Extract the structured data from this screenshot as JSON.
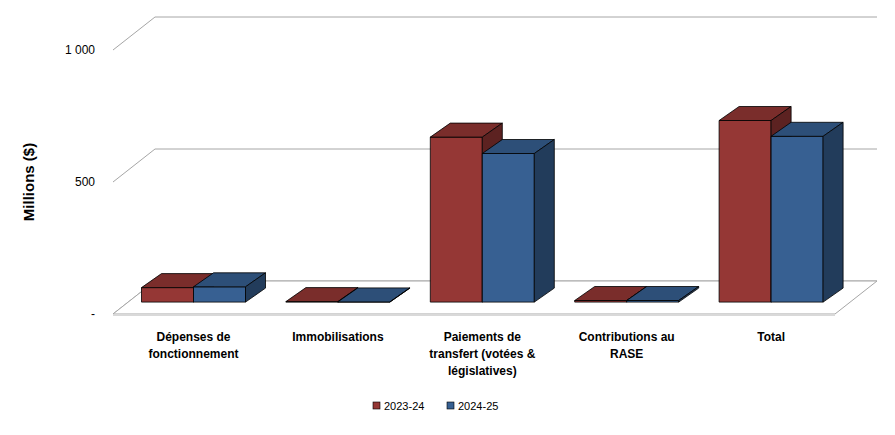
{
  "chart_data": {
    "type": "bar",
    "y_label": "Millions ($)",
    "categories": [
      "Dépenses de fonctionnement",
      "Immobilisations",
      "Paiements de transfert (votées & législatives)",
      "Contributions au RASE",
      "Total"
    ],
    "series": [
      {
        "name": "2023-24",
        "color": "#953735",
        "values": [
          55,
          2,
          625,
          6,
          688
        ]
      },
      {
        "name": "2024-25",
        "color": "#376092",
        "values": [
          58,
          1,
          563,
          6,
          628
        ]
      }
    ],
    "ylim": [
      0,
      1000
    ],
    "yticks": [
      {
        "value": 0,
        "label": "-"
      },
      500,
      {
        "value": 1000,
        "label": "1 000"
      }
    ],
    "grid": true,
    "legend": "bottom"
  }
}
